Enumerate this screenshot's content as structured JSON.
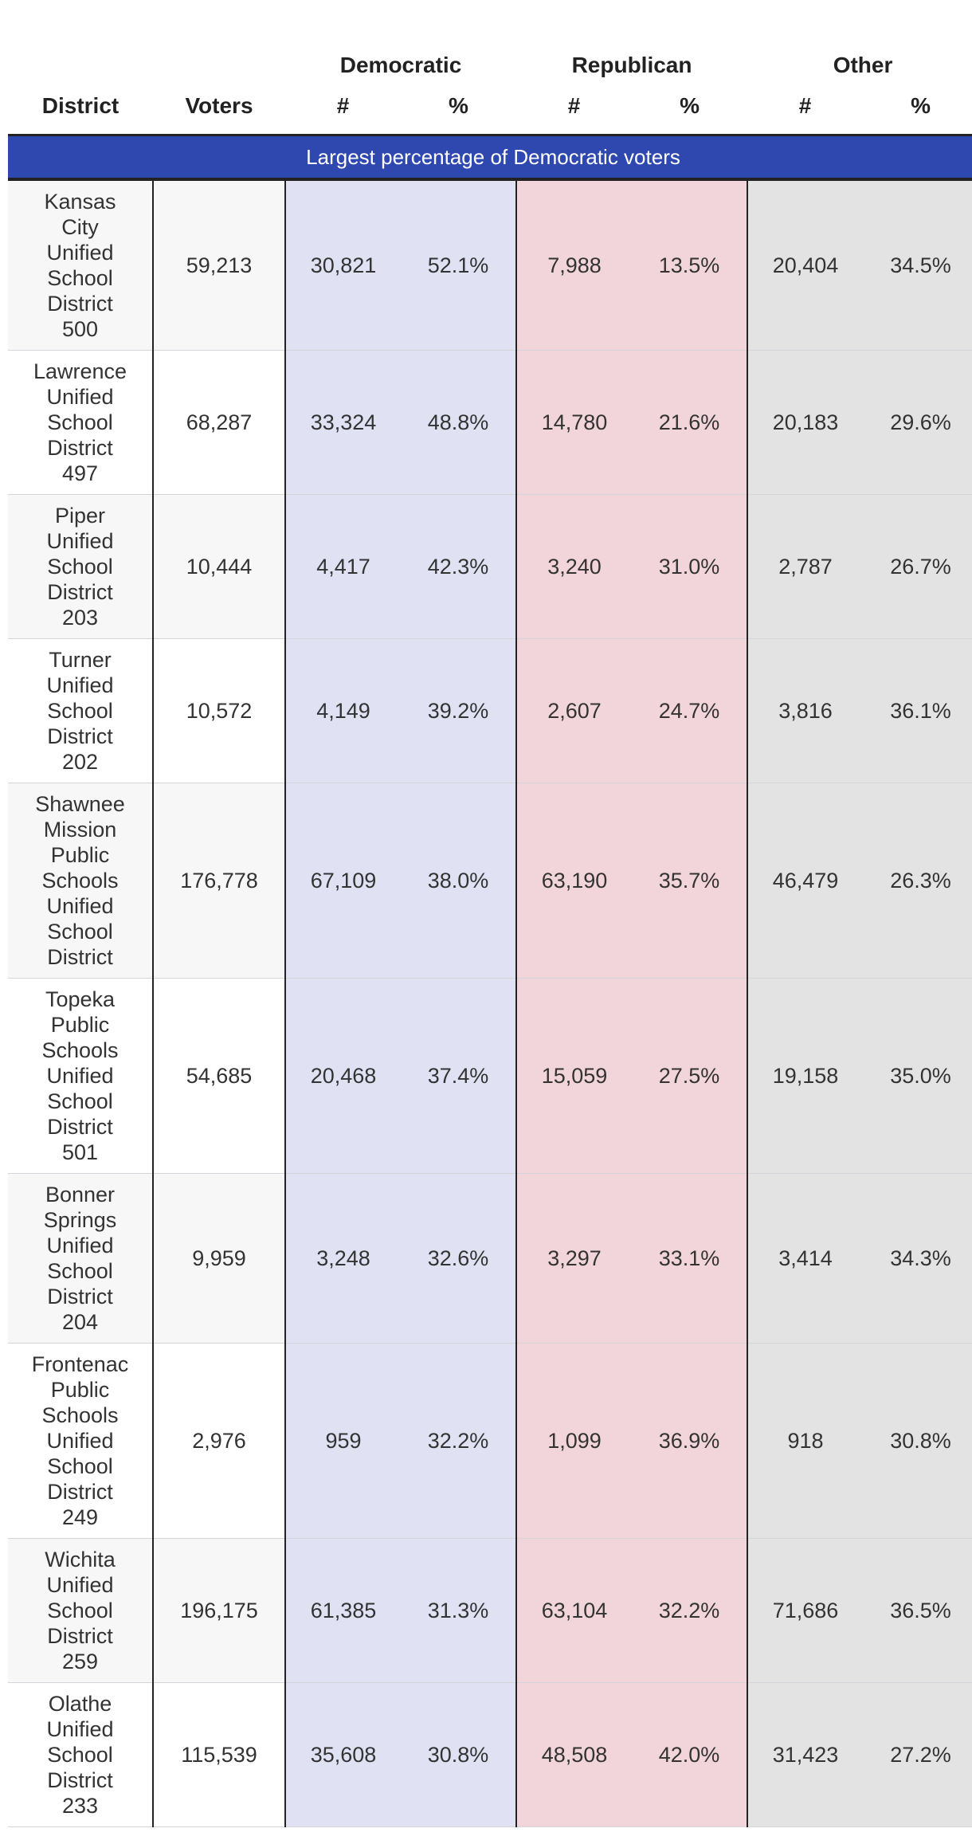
{
  "header": {
    "groups": {
      "democratic": "Democratic",
      "republican": "Republican",
      "other": "Other"
    },
    "columns": {
      "district": "District",
      "voters": "Voters",
      "num": "#",
      "pct": "%"
    },
    "banner": "Largest percentage of Democratic voters"
  },
  "colors": {
    "banner": "#2f48b0",
    "democratic": "#e0e2f4",
    "republican": "#f2d5da",
    "other": "#e3e3e3"
  },
  "rows": [
    {
      "district": "Kansas City Unified School District 500",
      "voters": "59,213",
      "dem_n": "30,821",
      "dem_p": "52.1%",
      "rep_n": "7,988",
      "rep_p": "13.5%",
      "oth_n": "20,404",
      "oth_p": "34.5%"
    },
    {
      "district": "Lawrence Unified School District 497",
      "voters": "68,287",
      "dem_n": "33,324",
      "dem_p": "48.8%",
      "rep_n": "14,780",
      "rep_p": "21.6%",
      "oth_n": "20,183",
      "oth_p": "29.6%"
    },
    {
      "district": "Piper Unified School District 203",
      "voters": "10,444",
      "dem_n": "4,417",
      "dem_p": "42.3%",
      "rep_n": "3,240",
      "rep_p": "31.0%",
      "oth_n": "2,787",
      "oth_p": "26.7%"
    },
    {
      "district": "Turner Unified School District 202",
      "voters": "10,572",
      "dem_n": "4,149",
      "dem_p": "39.2%",
      "rep_n": "2,607",
      "rep_p": "24.7%",
      "oth_n": "3,816",
      "oth_p": "36.1%"
    },
    {
      "district": "Shawnee Mission Public Schools Unified School District",
      "voters": "176,778",
      "dem_n": "67,109",
      "dem_p": "38.0%",
      "rep_n": "63,190",
      "rep_p": "35.7%",
      "oth_n": "46,479",
      "oth_p": "26.3%"
    },
    {
      "district": "Topeka Public Schools Unified School District 501",
      "voters": "54,685",
      "dem_n": "20,468",
      "dem_p": "37.4%",
      "rep_n": "15,059",
      "rep_p": "27.5%",
      "oth_n": "19,158",
      "oth_p": "35.0%"
    },
    {
      "district": "Bonner Springs Unified School District 204",
      "voters": "9,959",
      "dem_n": "3,248",
      "dem_p": "32.6%",
      "rep_n": "3,297",
      "rep_p": "33.1%",
      "oth_n": "3,414",
      "oth_p": "34.3%"
    },
    {
      "district": "Frontenac Public Schools Unified School District 249",
      "voters": "2,976",
      "dem_n": "959",
      "dem_p": "32.2%",
      "rep_n": "1,099",
      "rep_p": "36.9%",
      "oth_n": "918",
      "oth_p": "30.8%"
    },
    {
      "district": "Wichita Unified School District 259",
      "voters": "196,175",
      "dem_n": "61,385",
      "dem_p": "31.3%",
      "rep_n": "63,104",
      "rep_p": "32.2%",
      "oth_n": "71,686",
      "oth_p": "36.5%"
    },
    {
      "district": "Olathe Unified School District 233",
      "voters": "115,539",
      "dem_n": "35,608",
      "dem_p": "30.8%",
      "rep_n": "48,508",
      "rep_p": "42.0%",
      "oth_n": "31,423",
      "oth_p": "27.2%"
    }
  ]
}
